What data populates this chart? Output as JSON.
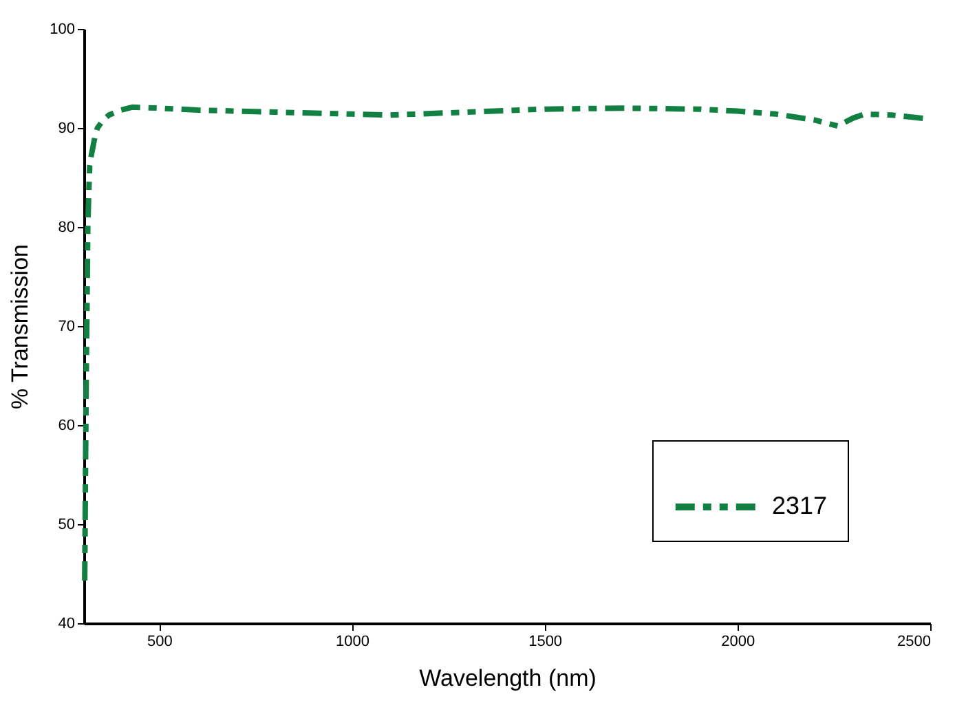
{
  "chart_data": {
    "type": "line",
    "xlabel": "Wavelength (nm)",
    "ylabel": "% Transmission",
    "xlim": [
      305,
      2500
    ],
    "xticks": [
      500,
      1000,
      1500,
      2000,
      2500
    ],
    "ylim": [
      40,
      100
    ],
    "yticks": [
      40,
      50,
      60,
      70,
      80,
      90,
      100
    ],
    "grid": false,
    "legend": "bottom right",
    "line_style": "dashed",
    "marker": "none",
    "series": [
      {
        "name": "2317",
        "color": "#138043",
        "x": [
          307,
          309,
          311,
          313,
          315,
          318,
          320,
          324,
          328,
          334,
          340,
          355,
          370,
          400,
          430,
          500,
          600,
          800,
          1000,
          1100,
          1300,
          1500,
          1700,
          1900,
          2000,
          2100,
          2200,
          2260,
          2300,
          2330,
          2400,
          2500
        ],
        "values": [
          44.3,
          55,
          65,
          72,
          80,
          84,
          86.2,
          87.2,
          88,
          89.2,
          90,
          90.8,
          91.3,
          91.8,
          92.1,
          92,
          91.8,
          91.6,
          91.4,
          91.3,
          91.6,
          91.9,
          92,
          91.9,
          91.7,
          91.4,
          90.8,
          90.2,
          91,
          91.4,
          91.3,
          90.9
        ]
      }
    ]
  }
}
